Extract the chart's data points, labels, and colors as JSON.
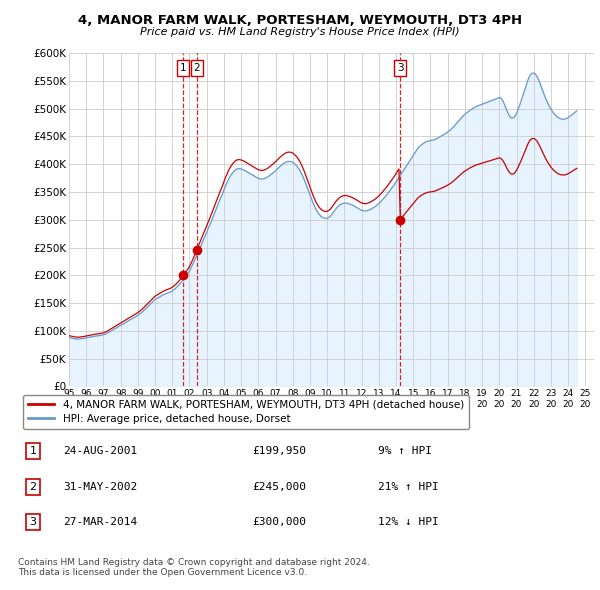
{
  "title": "4, MANOR FARM WALK, PORTESHAM, WEYMOUTH, DT3 4PH",
  "subtitle": "Price paid vs. HM Land Registry's House Price Index (HPI)",
  "ylabel_ticks": [
    "£0",
    "£50K",
    "£100K",
    "£150K",
    "£200K",
    "£250K",
    "£300K",
    "£350K",
    "£400K",
    "£450K",
    "£500K",
    "£550K",
    "£600K"
  ],
  "ylim": [
    0,
    600000
  ],
  "xlim_start": 1995.0,
  "xlim_end": 2025.5,
  "background_color": "#ffffff",
  "grid_color": "#cccccc",
  "sale_color": "#cc0000",
  "hpi_color": "#6699cc",
  "hpi_fill_color": "#ddeeff",
  "sale_points": [
    {
      "year": 2001.646,
      "value": 199950,
      "label": "1"
    },
    {
      "year": 2002.414,
      "value": 245000,
      "label": "2"
    },
    {
      "year": 2014.232,
      "value": 300000,
      "label": "3"
    }
  ],
  "legend_sale_label": "4, MANOR FARM WALK, PORTESHAM, WEYMOUTH, DT3 4PH (detached house)",
  "legend_hpi_label": "HPI: Average price, detached house, Dorset",
  "table_rows": [
    {
      "num": "1",
      "date": "24-AUG-2001",
      "price": "£199,950",
      "pct": "9% ↑ HPI"
    },
    {
      "num": "2",
      "date": "31-MAY-2002",
      "price": "£245,000",
      "pct": "21% ↑ HPI"
    },
    {
      "num": "3",
      "date": "27-MAR-2014",
      "price": "£300,000",
      "pct": "12% ↓ HPI"
    }
  ],
  "footer": "Contains HM Land Registry data © Crown copyright and database right 2024.\nThis data is licensed under the Open Government Licence v3.0.",
  "hpi_index": {
    "years": [
      1995.0,
      1995.083,
      1995.167,
      1995.25,
      1995.333,
      1995.417,
      1995.5,
      1995.583,
      1995.667,
      1995.75,
      1995.833,
      1995.917,
      1996.0,
      1996.083,
      1996.167,
      1996.25,
      1996.333,
      1996.417,
      1996.5,
      1996.583,
      1996.667,
      1996.75,
      1996.833,
      1996.917,
      1997.0,
      1997.083,
      1997.167,
      1997.25,
      1997.333,
      1997.417,
      1997.5,
      1997.583,
      1997.667,
      1997.75,
      1997.833,
      1997.917,
      1998.0,
      1998.083,
      1998.167,
      1998.25,
      1998.333,
      1998.417,
      1998.5,
      1998.583,
      1998.667,
      1998.75,
      1998.833,
      1998.917,
      1999.0,
      1999.083,
      1999.167,
      1999.25,
      1999.333,
      1999.417,
      1999.5,
      1999.583,
      1999.667,
      1999.75,
      1999.833,
      1999.917,
      2000.0,
      2000.083,
      2000.167,
      2000.25,
      2000.333,
      2000.417,
      2000.5,
      2000.583,
      2000.667,
      2000.75,
      2000.833,
      2000.917,
      2001.0,
      2001.083,
      2001.167,
      2001.25,
      2001.333,
      2001.417,
      2001.5,
      2001.583,
      2001.667,
      2001.75,
      2001.833,
      2001.917,
      2002.0,
      2002.083,
      2002.167,
      2002.25,
      2002.333,
      2002.417,
      2002.5,
      2002.583,
      2002.667,
      2002.75,
      2002.833,
      2002.917,
      2003.0,
      2003.083,
      2003.167,
      2003.25,
      2003.333,
      2003.417,
      2003.5,
      2003.583,
      2003.667,
      2003.75,
      2003.833,
      2003.917,
      2004.0,
      2004.083,
      2004.167,
      2004.25,
      2004.333,
      2004.417,
      2004.5,
      2004.583,
      2004.667,
      2004.75,
      2004.833,
      2004.917,
      2005.0,
      2005.083,
      2005.167,
      2005.25,
      2005.333,
      2005.417,
      2005.5,
      2005.583,
      2005.667,
      2005.75,
      2005.833,
      2005.917,
      2006.0,
      2006.083,
      2006.167,
      2006.25,
      2006.333,
      2006.417,
      2006.5,
      2006.583,
      2006.667,
      2006.75,
      2006.833,
      2006.917,
      2007.0,
      2007.083,
      2007.167,
      2007.25,
      2007.333,
      2007.417,
      2007.5,
      2007.583,
      2007.667,
      2007.75,
      2007.833,
      2007.917,
      2008.0,
      2008.083,
      2008.167,
      2008.25,
      2008.333,
      2008.417,
      2008.5,
      2008.583,
      2008.667,
      2008.75,
      2008.833,
      2008.917,
      2009.0,
      2009.083,
      2009.167,
      2009.25,
      2009.333,
      2009.417,
      2009.5,
      2009.583,
      2009.667,
      2009.75,
      2009.833,
      2009.917,
      2010.0,
      2010.083,
      2010.167,
      2010.25,
      2010.333,
      2010.417,
      2010.5,
      2010.583,
      2010.667,
      2010.75,
      2010.833,
      2010.917,
      2011.0,
      2011.083,
      2011.167,
      2011.25,
      2011.333,
      2011.417,
      2011.5,
      2011.583,
      2011.667,
      2011.75,
      2011.833,
      2011.917,
      2012.0,
      2012.083,
      2012.167,
      2012.25,
      2012.333,
      2012.417,
      2012.5,
      2012.583,
      2012.667,
      2012.75,
      2012.833,
      2012.917,
      2013.0,
      2013.083,
      2013.167,
      2013.25,
      2013.333,
      2013.417,
      2013.5,
      2013.583,
      2013.667,
      2013.75,
      2013.833,
      2013.917,
      2014.0,
      2014.083,
      2014.167,
      2014.25,
      2014.333,
      2014.417,
      2014.5,
      2014.583,
      2014.667,
      2014.75,
      2014.833,
      2014.917,
      2015.0,
      2015.083,
      2015.167,
      2015.25,
      2015.333,
      2015.417,
      2015.5,
      2015.583,
      2015.667,
      2015.75,
      2015.833,
      2015.917,
      2016.0,
      2016.083,
      2016.167,
      2016.25,
      2016.333,
      2016.417,
      2016.5,
      2016.583,
      2016.667,
      2016.75,
      2016.833,
      2016.917,
      2017.0,
      2017.083,
      2017.167,
      2017.25,
      2017.333,
      2017.417,
      2017.5,
      2017.583,
      2017.667,
      2017.75,
      2017.833,
      2017.917,
      2018.0,
      2018.083,
      2018.167,
      2018.25,
      2018.333,
      2018.417,
      2018.5,
      2018.583,
      2018.667,
      2018.75,
      2018.833,
      2018.917,
      2019.0,
      2019.083,
      2019.167,
      2019.25,
      2019.333,
      2019.417,
      2019.5,
      2019.583,
      2019.667,
      2019.75,
      2019.833,
      2019.917,
      2020.0,
      2020.083,
      2020.167,
      2020.25,
      2020.333,
      2020.417,
      2020.5,
      2020.583,
      2020.667,
      2020.75,
      2020.833,
      2020.917,
      2021.0,
      2021.083,
      2021.167,
      2021.25,
      2021.333,
      2021.417,
      2021.5,
      2021.583,
      2021.667,
      2021.75,
      2021.833,
      2021.917,
      2022.0,
      2022.083,
      2022.167,
      2022.25,
      2022.333,
      2022.417,
      2022.5,
      2022.583,
      2022.667,
      2022.75,
      2022.833,
      2022.917,
      2023.0,
      2023.083,
      2023.167,
      2023.25,
      2023.333,
      2023.417,
      2023.5,
      2023.583,
      2023.667,
      2023.75,
      2023.833,
      2023.917,
      2024.0,
      2024.083,
      2024.167,
      2024.25,
      2024.333,
      2024.417,
      2024.5
    ],
    "values": [
      88000,
      87500,
      87000,
      86500,
      86000,
      85500,
      85500,
      85500,
      86000,
      86000,
      86500,
      87000,
      87500,
      88000,
      88500,
      89000,
      89500,
      90000,
      90500,
      91000,
      91000,
      91500,
      92000,
      92500,
      93000,
      94000,
      95000,
      96500,
      98000,
      99500,
      101000,
      102500,
      104000,
      105500,
      107000,
      108500,
      110000,
      111500,
      113000,
      114500,
      116000,
      117500,
      119000,
      120500,
      122000,
      123500,
      125000,
      126500,
      128000,
      130000,
      132000,
      134000,
      136500,
      139000,
      141500,
      144000,
      146500,
      149000,
      151500,
      154000,
      156500,
      158000,
      159500,
      161000,
      162500,
      164000,
      165500,
      166500,
      167500,
      168500,
      169500,
      170500,
      172000,
      174000,
      176000,
      178500,
      181000,
      184000,
      187000,
      190000,
      193500,
      197000,
      200500,
      204000,
      208000,
      213000,
      218500,
      224000,
      229500,
      235500,
      241500,
      247500,
      253500,
      259500,
      265500,
      271500,
      278000,
      284000,
      290000,
      296000,
      302500,
      309000,
      315500,
      322000,
      328500,
      335000,
      341000,
      347000,
      354000,
      360500,
      366500,
      372000,
      377000,
      381000,
      384500,
      387500,
      390000,
      391500,
      392000,
      392000,
      391500,
      390500,
      389500,
      388000,
      386500,
      385000,
      383500,
      382000,
      380500,
      379000,
      377500,
      376000,
      374500,
      374000,
      373500,
      373500,
      374000,
      375000,
      376500,
      378000,
      380000,
      382000,
      384000,
      386000,
      388500,
      391000,
      393500,
      396000,
      398000,
      400000,
      402000,
      403500,
      404500,
      405000,
      405000,
      404500,
      403500,
      401500,
      399000,
      396000,
      392500,
      388500,
      383500,
      378000,
      372000,
      365500,
      358500,
      351500,
      344500,
      337500,
      331000,
      325000,
      319500,
      315000,
      311000,
      308000,
      305500,
      304000,
      303000,
      302500,
      303000,
      304000,
      306000,
      309000,
      312500,
      316000,
      319500,
      322500,
      325000,
      327000,
      328500,
      329500,
      330000,
      330000,
      329500,
      329000,
      328000,
      327000,
      326000,
      324500,
      323000,
      321500,
      320000,
      318500,
      317000,
      316500,
      316000,
      316000,
      316500,
      317500,
      318500,
      320000,
      321500,
      323000,
      325000,
      327000,
      329500,
      332000,
      334500,
      337500,
      340500,
      343500,
      346500,
      350000,
      353500,
      357000,
      360500,
      364000,
      368000,
      372000,
      376000,
      380000,
      384000,
      388000,
      392000,
      396000,
      400000,
      404000,
      408000,
      412000,
      416000,
      420000,
      424000,
      428000,
      431000,
      433500,
      435500,
      437500,
      439000,
      440500,
      441500,
      442000,
      442500,
      443000,
      443500,
      444500,
      445500,
      447000,
      448500,
      450000,
      451500,
      453000,
      454500,
      456000,
      458000,
      460000,
      462000,
      464500,
      467000,
      470000,
      473000,
      476000,
      479000,
      482000,
      485000,
      487500,
      490000,
      492000,
      494000,
      496000,
      498000,
      499500,
      501000,
      502500,
      504000,
      505000,
      506000,
      507000,
      508000,
      509000,
      510000,
      511000,
      512000,
      513000,
      514000,
      515000,
      516000,
      517000,
      518000,
      519000,
      520000,
      519000,
      516000,
      511000,
      505000,
      498000,
      492000,
      487000,
      484000,
      483000,
      484000,
      487000,
      492000,
      498000,
      505000,
      512500,
      520000,
      528000,
      536000,
      544000,
      552000,
      558000,
      562000,
      564000,
      564000,
      562500,
      559000,
      554000,
      548000,
      541000,
      534000,
      527000,
      520000,
      514000,
      508500,
      503500,
      499000,
      495000,
      491500,
      488500,
      486000,
      484000,
      482500,
      481500,
      481000,
      481000,
      481500,
      482500,
      484000,
      486000,
      488000,
      490000,
      492000,
      494000,
      496000
    ]
  }
}
